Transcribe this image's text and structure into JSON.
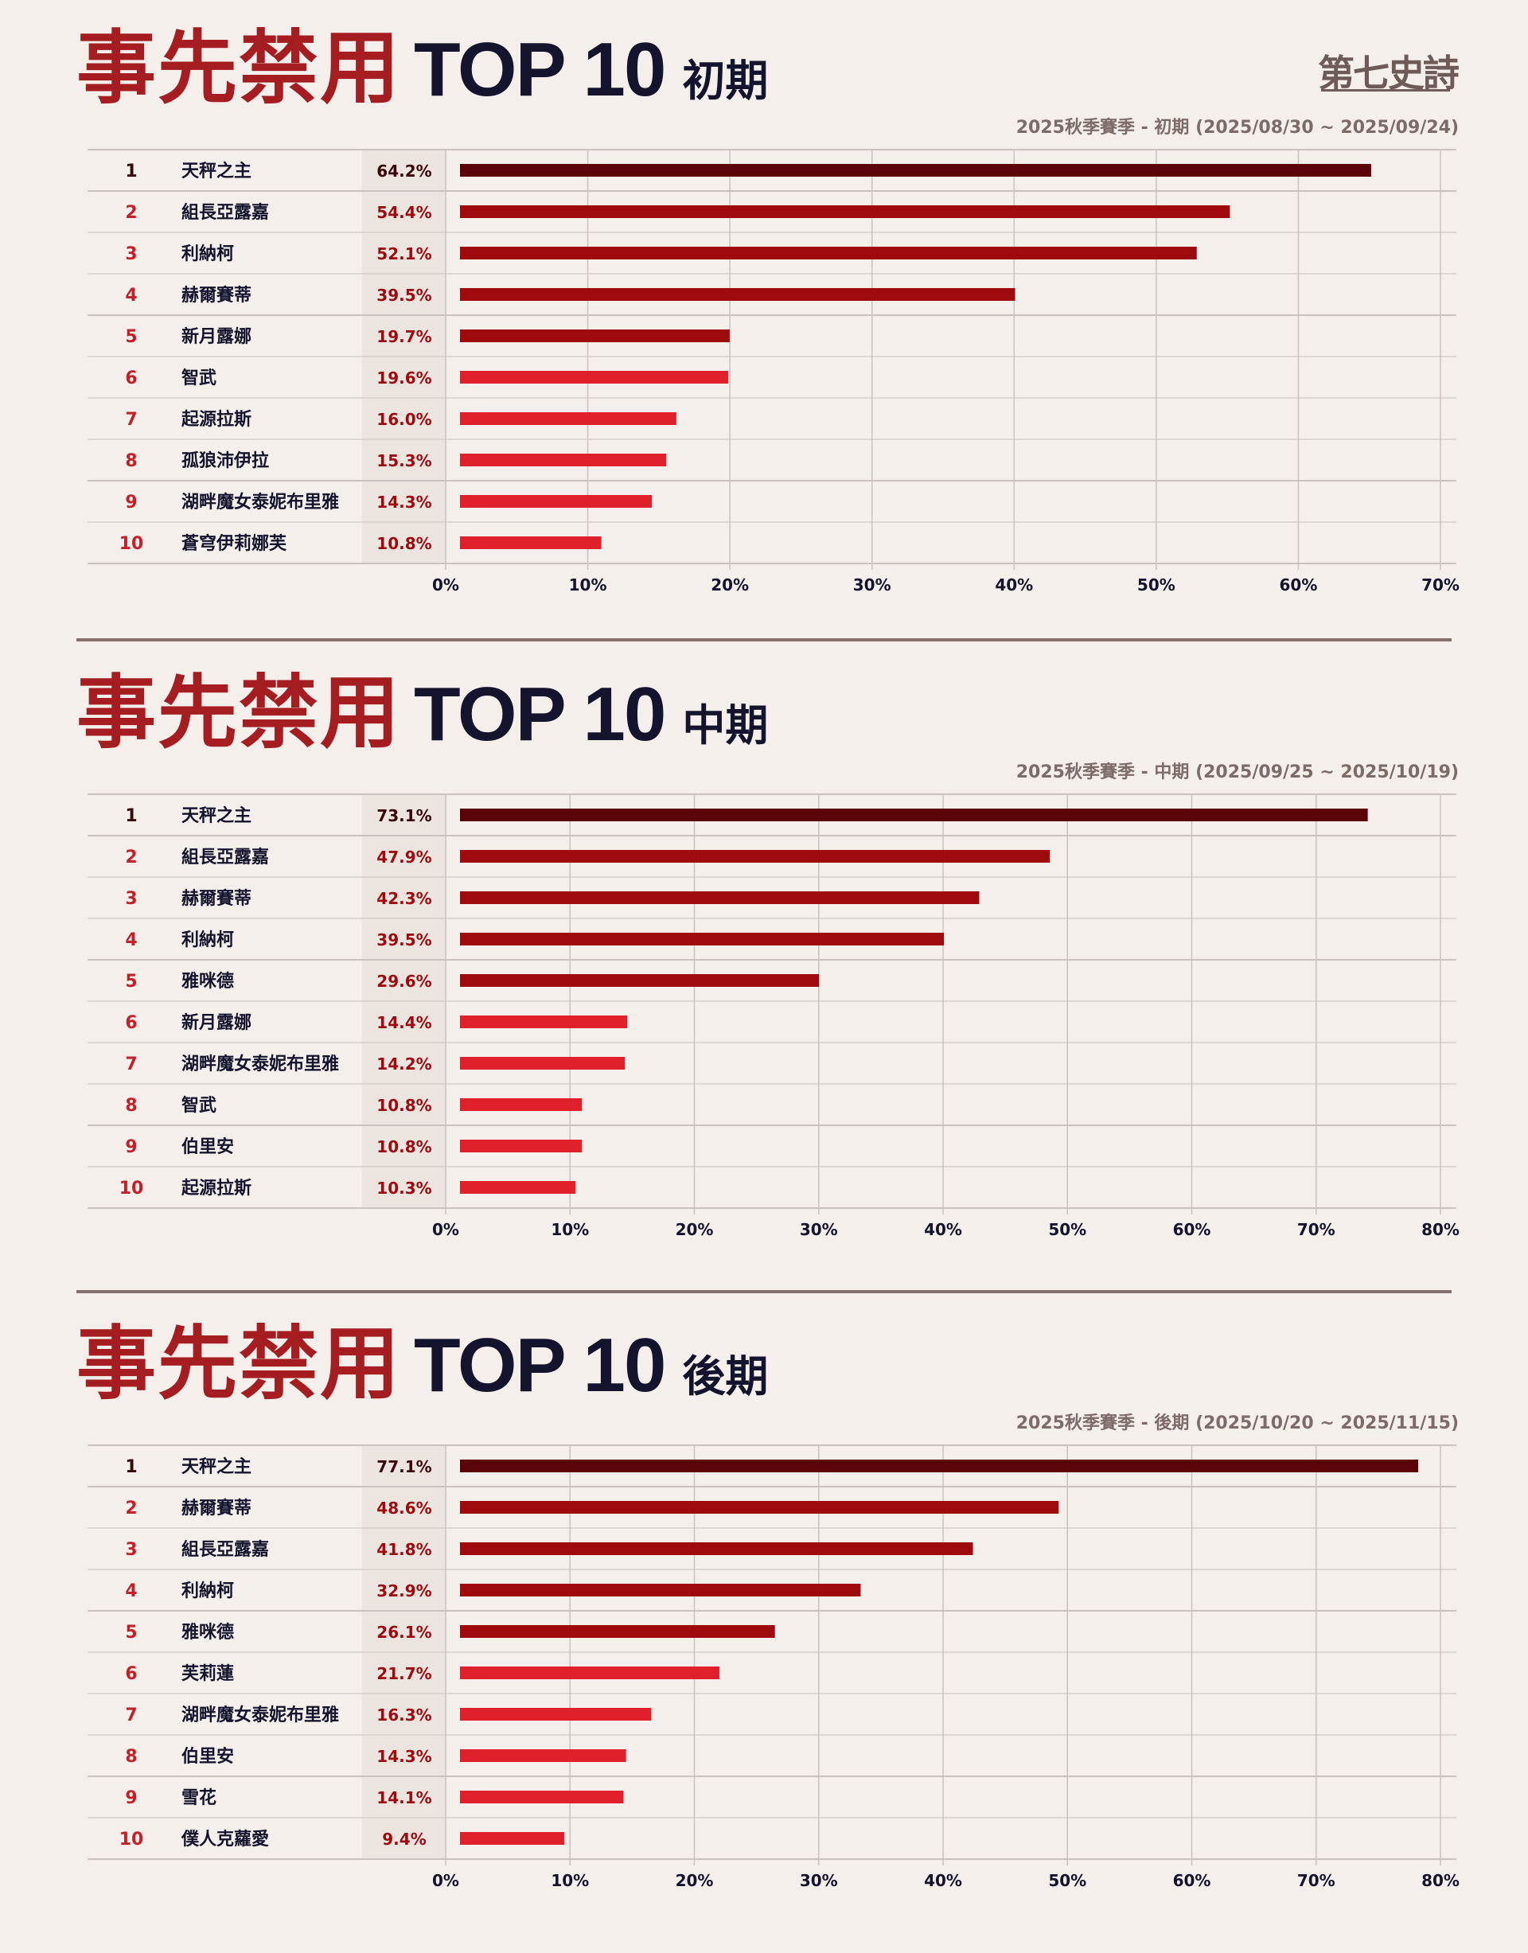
{
  "brand": {
    "logo_text": "第七史詩"
  },
  "colors": {
    "background": "#f4efeb",
    "title_red": "#a51d21",
    "title_dark": "#14142e",
    "bar_top1": "#5a0407",
    "bar_2_5": "#9e0a0e",
    "bar_6_10": "#e0202a",
    "rank_top": "#3b0607",
    "rank_red": "#c42027",
    "pct_band": "#ebe4df",
    "grid": "#c9c2be"
  },
  "chart_data": [
    {
      "type": "bar",
      "orientation": "horizontal",
      "title_main": "事先禁用",
      "title_top": "TOP 10",
      "title_phase": "初期",
      "subtitle": "2025秋季賽季 - 初期 (2025/08/30 ~ 2025/09/24)",
      "ranks": [
        "1",
        "2",
        "3",
        "4",
        "5",
        "6",
        "7",
        "8",
        "9",
        "10"
      ],
      "categories": [
        "天秤之主",
        "組長亞露嘉",
        "利納柯",
        "赫爾賽蒂",
        "新月露娜",
        "智武",
        "起源拉斯",
        "孤狼沛伊拉",
        "湖畔魔女泰妮布里雅",
        "蒼穹伊莉娜芙"
      ],
      "value_labels": [
        "64.2%",
        "54.4%",
        "52.1%",
        "39.5%",
        "19.7%",
        "19.6%",
        "16.0%",
        "15.3%",
        "14.3%",
        "10.8%"
      ],
      "values": [
        64.2,
        54.4,
        52.1,
        39.5,
        19.7,
        19.6,
        16.0,
        15.3,
        14.3,
        10.8
      ],
      "xlim": [
        0,
        70
      ],
      "xticks": [
        "0%",
        "10%",
        "20%",
        "30%",
        "40%",
        "50%",
        "60%",
        "70%"
      ],
      "grid": true
    },
    {
      "type": "bar",
      "orientation": "horizontal",
      "title_main": "事先禁用",
      "title_top": "TOP 10",
      "title_phase": "中期",
      "subtitle": "2025秋季賽季 - 中期 (2025/09/25 ~ 2025/10/19)",
      "ranks": [
        "1",
        "2",
        "3",
        "4",
        "5",
        "6",
        "7",
        "8",
        "9",
        "10"
      ],
      "categories": [
        "天秤之主",
        "組長亞露嘉",
        "赫爾賽蒂",
        "利納柯",
        "雅咪德",
        "新月露娜",
        "湖畔魔女泰妮布里雅",
        "智武",
        "伯里安",
        "起源拉斯"
      ],
      "value_labels": [
        "73.1%",
        "47.9%",
        "42.3%",
        "39.5%",
        "29.6%",
        "14.4%",
        "14.2%",
        "10.8%",
        "10.8%",
        "10.3%"
      ],
      "values": [
        73.1,
        47.9,
        42.3,
        39.5,
        29.6,
        14.4,
        14.2,
        10.8,
        10.8,
        10.3
      ],
      "xlim": [
        0,
        80
      ],
      "xticks": [
        "0%",
        "10%",
        "20%",
        "30%",
        "40%",
        "50%",
        "60%",
        "70%",
        "80%"
      ],
      "grid": true
    },
    {
      "type": "bar",
      "orientation": "horizontal",
      "title_main": "事先禁用",
      "title_top": "TOP 10",
      "title_phase": "後期",
      "subtitle": "2025秋季賽季 - 後期 (2025/10/20 ~ 2025/11/15)",
      "ranks": [
        "1",
        "2",
        "3",
        "4",
        "5",
        "6",
        "7",
        "8",
        "9",
        "10"
      ],
      "categories": [
        "天秤之主",
        "赫爾賽蒂",
        "組長亞露嘉",
        "利納柯",
        "雅咪德",
        "芙莉蓮",
        "湖畔魔女泰妮布里雅",
        "伯里安",
        "雪花",
        "僕人克蘿愛"
      ],
      "value_labels": [
        "77.1%",
        "48.6%",
        "41.8%",
        "32.9%",
        "26.1%",
        "21.7%",
        "16.3%",
        "14.3%",
        "14.1%",
        "9.4%"
      ],
      "values": [
        77.1,
        48.6,
        41.8,
        32.9,
        26.1,
        21.7,
        16.3,
        14.3,
        14.1,
        9.4
      ],
      "xlim": [
        0,
        80
      ],
      "xticks": [
        "0%",
        "10%",
        "20%",
        "30%",
        "40%",
        "50%",
        "60%",
        "70%",
        "80%"
      ],
      "grid": true
    }
  ]
}
